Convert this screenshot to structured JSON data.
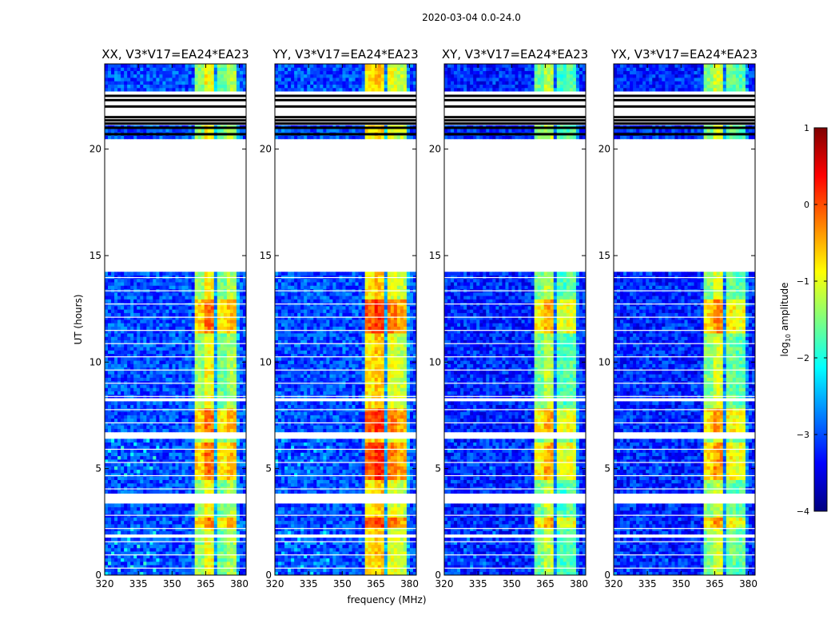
{
  "figure_title": "2020-03-04 0.0-24.0",
  "colors": {
    "blank": "#ffffff",
    "flag": "#000000",
    "axis": "#000000"
  },
  "colorbar": {
    "label_prefix": "log",
    "label_sub": "10",
    "label_suffix": " amplitude",
    "range": [
      -4,
      1
    ],
    "ticks": [
      {
        "value": 1,
        "label": "1"
      },
      {
        "value": 0,
        "label": "0"
      },
      {
        "value": -1,
        "label": "−1"
      },
      {
        "value": -2,
        "label": "−2"
      },
      {
        "value": -3,
        "label": "−3"
      },
      {
        "value": -4,
        "label": "−4"
      }
    ],
    "colormap": [
      "#00007f",
      "#0000ff",
      "#007fff",
      "#00ffff",
      "#7fff7f",
      "#ffff00",
      "#ff7f00",
      "#ff0000",
      "#7f0000"
    ]
  },
  "chart_data": {
    "type": "heatmap",
    "xlabel": "frequency (MHz)",
    "ylabel": "UT (hours)",
    "xlim": [
      320,
      383
    ],
    "ylim": [
      0,
      24
    ],
    "xticks": [
      {
        "value": 320,
        "label": "320"
      },
      {
        "value": 335,
        "label": "335"
      },
      {
        "value": 350,
        "label": "350"
      },
      {
        "value": 365,
        "label": "365"
      },
      {
        "value": 380,
        "label": "380"
      }
    ],
    "yticks": [
      {
        "value": 0,
        "label": "0"
      },
      {
        "value": 5,
        "label": "5"
      },
      {
        "value": 10,
        "label": "10"
      },
      {
        "value": 15,
        "label": "15"
      },
      {
        "value": 20,
        "label": "20"
      }
    ],
    "panels": [
      {
        "title": "XX, V3*V17=EA24*EA23",
        "band_level": [
          -1.4,
          -0.9,
          -1.6,
          -1.3
        ],
        "background_level": -3.0,
        "low_feature_level": -2.0
      },
      {
        "title": "YY, V3*V17=EA24*EA23",
        "band_level": [
          -0.8,
          -0.6,
          -1.0,
          -1.2
        ],
        "background_level": -3.0,
        "low_feature_level": -2.2
      },
      {
        "title": "XY, V3*V17=EA24*EA23",
        "band_level": [
          -1.6,
          -1.2,
          -1.8,
          -1.7
        ],
        "background_level": -3.2,
        "low_feature_level": -2.7
      },
      {
        "title": "YX, V3*V17=EA24*EA23",
        "band_level": [
          -1.5,
          -1.1,
          -1.6,
          -1.7
        ],
        "background_level": -3.2,
        "low_feature_level": -2.7
      }
    ],
    "signal_channels_mhz": [
      [
        360,
        364
      ],
      [
        365,
        369
      ],
      [
        370,
        374
      ],
      [
        375,
        379
      ]
    ],
    "bright_intervals_ut": [
      [
        4.5,
        6.3
      ],
      [
        6.8,
        7.9
      ],
      [
        11.3,
        12.9
      ],
      [
        2.2,
        2.7
      ]
    ],
    "no_data_ut": [
      [
        14.3,
        20.5
      ],
      [
        21.1,
        22.7
      ]
    ],
    "flagged_ut": [
      21.2,
      21.35,
      21.5,
      21.0,
      20.7,
      22.0,
      22.3,
      22.5
    ],
    "white_gaps_ut": [
      [
        6.45,
        6.7
      ],
      [
        3.35,
        3.85
      ],
      [
        8.2,
        8.35
      ],
      [
        1.75,
        1.9
      ],
      [
        23.95,
        24.0
      ]
    ]
  }
}
